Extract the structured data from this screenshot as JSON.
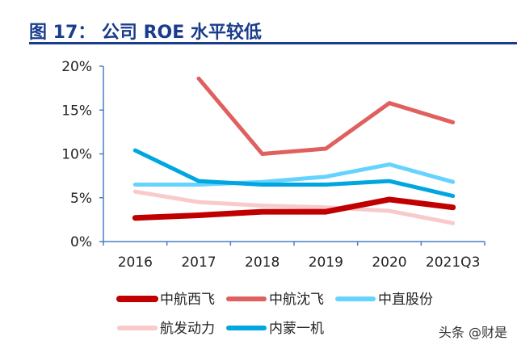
{
  "title": "图 17： 公司 ROE 水平较低",
  "watermark": "头条 @财是",
  "chart_data": {
    "type": "line",
    "title": "图 17： 公司 ROE 水平较低",
    "categories": [
      "2016",
      "2017",
      "2018",
      "2019",
      "2020",
      "2021Q3"
    ],
    "ylim": [
      0,
      20
    ],
    "yticks": [
      "0%",
      "5%",
      "10%",
      "15%",
      "20%"
    ],
    "grid": false,
    "legend_position": "bottom",
    "series": [
      {
        "name": "中航西飞",
        "color": "#C00000",
        "values": [
          2.7,
          3.0,
          3.4,
          3.4,
          4.8,
          3.9
        ]
      },
      {
        "name": "中航沈飞",
        "color": "#E06060",
        "values": [
          null,
          18.6,
          10.0,
          10.6,
          15.8,
          13.6
        ]
      },
      {
        "name": "中直股份",
        "color": "#66D3FF",
        "values": [
          6.5,
          6.5,
          6.8,
          7.4,
          8.8,
          6.8
        ]
      },
      {
        "name": "航发动力",
        "color": "#F8CACA",
        "values": [
          5.7,
          4.5,
          4.1,
          3.9,
          3.5,
          2.1
        ]
      },
      {
        "name": "内蒙一机",
        "color": "#00A6E0",
        "values": [
          10.4,
          6.9,
          6.5,
          6.5,
          6.9,
          5.2
        ]
      }
    ]
  }
}
